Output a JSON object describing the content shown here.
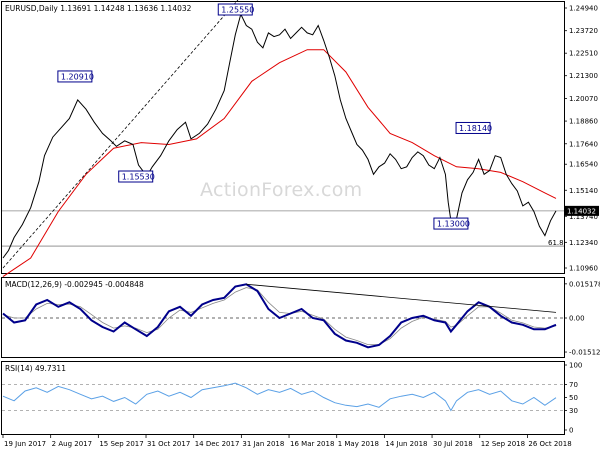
{
  "chart_data": {
    "type": "line",
    "watermark": "ActionForex.com",
    "x_labels": [
      "19 Jun 2017",
      "2 Aug 2017",
      "15 Sep 2017",
      "31 Oct 2017",
      "14 Dec 2017",
      "31 Jan 2018",
      "16 Mar 2018",
      "1 May 2018",
      "14 Jun 2018",
      "30 Jul 2018",
      "12 Sep 2018",
      "26 Oct 2018"
    ],
    "price": {
      "title": "EURUSD,Daily  1.13691 1.14248 1.13636 1.14032",
      "y_ticks": [
        "1.24940",
        "1.23720",
        "1.22510",
        "1.21300",
        "1.20070",
        "1.18860",
        "1.17640",
        "1.16540",
        "1.15140",
        "1.13740",
        "1.12340",
        "1.10960"
      ],
      "y_min": 1.1096,
      "y_max": 1.2494,
      "last_value_label": "1.14032",
      "current": 1.14032,
      "fib_label": "61.8",
      "fib_level": 1.1214,
      "annotations": [
        {
          "label": "1.25550",
          "value": 1.2555,
          "x_frac": 0.42
        },
        {
          "label": "1.20910",
          "value": 1.2091,
          "x_frac": 0.13
        },
        {
          "label": "1.15530",
          "value": 1.1553,
          "x_frac": 0.24
        },
        {
          "label": "1.18140",
          "value": 1.1814,
          "x_frac": 0.85
        },
        {
          "label": "1.13000",
          "value": 1.13,
          "x_frac": 0.81
        }
      ],
      "close_points": [
        [
          0.0,
          1.115
        ],
        [
          0.01,
          1.119
        ],
        [
          0.02,
          1.126
        ],
        [
          0.035,
          1.133
        ],
        [
          0.05,
          1.142
        ],
        [
          0.065,
          1.156
        ],
        [
          0.075,
          1.17
        ],
        [
          0.09,
          1.18
        ],
        [
          0.105,
          1.185
        ],
        [
          0.12,
          1.19
        ],
        [
          0.135,
          1.2
        ],
        [
          0.15,
          1.195
        ],
        [
          0.165,
          1.188
        ],
        [
          0.18,
          1.182
        ],
        [
          0.195,
          1.178
        ],
        [
          0.205,
          1.175
        ],
        [
          0.22,
          1.178
        ],
        [
          0.235,
          1.176
        ],
        [
          0.245,
          1.165
        ],
        [
          0.26,
          1.159
        ],
        [
          0.27,
          1.164
        ],
        [
          0.285,
          1.17
        ],
        [
          0.3,
          1.178
        ],
        [
          0.315,
          1.184
        ],
        [
          0.33,
          1.188
        ],
        [
          0.34,
          1.179
        ],
        [
          0.355,
          1.182
        ],
        [
          0.37,
          1.187
        ],
        [
          0.385,
          1.195
        ],
        [
          0.4,
          1.205
        ],
        [
          0.41,
          1.22
        ],
        [
          0.42,
          1.235
        ],
        [
          0.43,
          1.246
        ],
        [
          0.44,
          1.24
        ],
        [
          0.45,
          1.238
        ],
        [
          0.46,
          1.231
        ],
        [
          0.47,
          1.228
        ],
        [
          0.48,
          1.236
        ],
        [
          0.49,
          1.234
        ],
        [
          0.5,
          1.235
        ],
        [
          0.51,
          1.238
        ],
        [
          0.52,
          1.233
        ],
        [
          0.53,
          1.236
        ],
        [
          0.54,
          1.239
        ],
        [
          0.55,
          1.236
        ],
        [
          0.56,
          1.235
        ],
        [
          0.57,
          1.24
        ],
        [
          0.58,
          1.232
        ],
        [
          0.59,
          1.223
        ],
        [
          0.6,
          1.213
        ],
        [
          0.61,
          1.2
        ],
        [
          0.62,
          1.19
        ],
        [
          0.63,
          1.183
        ],
        [
          0.64,
          1.176
        ],
        [
          0.65,
          1.173
        ],
        [
          0.66,
          1.168
        ],
        [
          0.67,
          1.16
        ],
        [
          0.68,
          1.164
        ],
        [
          0.69,
          1.166
        ],
        [
          0.7,
          1.171
        ],
        [
          0.71,
          1.168
        ],
        [
          0.72,
          1.163
        ],
        [
          0.73,
          1.164
        ],
        [
          0.74,
          1.169
        ],
        [
          0.75,
          1.172
        ],
        [
          0.76,
          1.17
        ],
        [
          0.77,
          1.165
        ],
        [
          0.78,
          1.163
        ],
        [
          0.79,
          1.169
        ],
        [
          0.8,
          1.16
        ],
        [
          0.805,
          1.145
        ],
        [
          0.812,
          1.131
        ],
        [
          0.82,
          1.136
        ],
        [
          0.83,
          1.15
        ],
        [
          0.84,
          1.157
        ],
        [
          0.85,
          1.161
        ],
        [
          0.86,
          1.168
        ],
        [
          0.87,
          1.16
        ],
        [
          0.88,
          1.162
        ],
        [
          0.89,
          1.17
        ],
        [
          0.9,
          1.169
        ],
        [
          0.91,
          1.16
        ],
        [
          0.92,
          1.155
        ],
        [
          0.93,
          1.151
        ],
        [
          0.94,
          1.143
        ],
        [
          0.95,
          1.145
        ],
        [
          0.96,
          1.14
        ],
        [
          0.97,
          1.132
        ],
        [
          0.98,
          1.127
        ],
        [
          0.99,
          1.135
        ],
        [
          1.0,
          1.1403
        ]
      ],
      "ma_points": [
        [
          0.0,
          1.105
        ],
        [
          0.05,
          1.115
        ],
        [
          0.1,
          1.14
        ],
        [
          0.15,
          1.16
        ],
        [
          0.2,
          1.174
        ],
        [
          0.25,
          1.177
        ],
        [
          0.3,
          1.176
        ],
        [
          0.35,
          1.179
        ],
        [
          0.4,
          1.19
        ],
        [
          0.45,
          1.21
        ],
        [
          0.5,
          1.22
        ],
        [
          0.55,
          1.227
        ],
        [
          0.58,
          1.227
        ],
        [
          0.62,
          1.215
        ],
        [
          0.66,
          1.196
        ],
        [
          0.7,
          1.182
        ],
        [
          0.74,
          1.177
        ],
        [
          0.78,
          1.17
        ],
        [
          0.82,
          1.164
        ],
        [
          0.86,
          1.163
        ],
        [
          0.9,
          1.161
        ],
        [
          0.94,
          1.156
        ],
        [
          0.98,
          1.15
        ],
        [
          1.0,
          1.147
        ]
      ],
      "trendline": {
        "start": [
          0.0,
          1.1096
        ],
        "end": [
          0.43,
          1.2555
        ]
      }
    },
    "macd": {
      "title": "MACD(12,26,9) -0.002945 -0.004848",
      "y_ticks": [
        "0.015178",
        "0.00",
        "-0.015126"
      ],
      "y_min": -0.016,
      "y_max": 0.016,
      "macd_points": [
        [
          0.0,
          0.002
        ],
        [
          0.02,
          -0.002
        ],
        [
          0.04,
          -0.001
        ],
        [
          0.06,
          0.006
        ],
        [
          0.08,
          0.008
        ],
        [
          0.1,
          0.005
        ],
        [
          0.12,
          0.007
        ],
        [
          0.14,
          0.004
        ],
        [
          0.16,
          -0.001
        ],
        [
          0.18,
          -0.004
        ],
        [
          0.2,
          -0.006
        ],
        [
          0.22,
          -0.002
        ],
        [
          0.24,
          -0.005
        ],
        [
          0.26,
          -0.008
        ],
        [
          0.28,
          -0.004
        ],
        [
          0.3,
          0.003
        ],
        [
          0.32,
          0.005
        ],
        [
          0.34,
          0.001
        ],
        [
          0.36,
          0.006
        ],
        [
          0.38,
          0.008
        ],
        [
          0.4,
          0.009
        ],
        [
          0.42,
          0.014
        ],
        [
          0.44,
          0.015
        ],
        [
          0.46,
          0.012
        ],
        [
          0.48,
          0.004
        ],
        [
          0.5,
          0.0
        ],
        [
          0.52,
          0.002
        ],
        [
          0.54,
          0.004
        ],
        [
          0.56,
          0.0
        ],
        [
          0.58,
          -0.001
        ],
        [
          0.6,
          -0.007
        ],
        [
          0.62,
          -0.01
        ],
        [
          0.64,
          -0.011
        ],
        [
          0.66,
          -0.013
        ],
        [
          0.68,
          -0.012
        ],
        [
          0.7,
          -0.008
        ],
        [
          0.72,
          -0.002
        ],
        [
          0.74,
          0.0
        ],
        [
          0.76,
          0.001
        ],
        [
          0.78,
          -0.001
        ],
        [
          0.8,
          -0.002
        ],
        [
          0.81,
          -0.006
        ],
        [
          0.82,
          -0.003
        ],
        [
          0.84,
          0.003
        ],
        [
          0.86,
          0.007
        ],
        [
          0.88,
          0.005
        ],
        [
          0.9,
          0.001
        ],
        [
          0.92,
          -0.002
        ],
        [
          0.94,
          -0.003
        ],
        [
          0.96,
          -0.005
        ],
        [
          0.98,
          -0.005
        ],
        [
          1.0,
          -0.003
        ]
      ],
      "signal_points": [
        [
          0.0,
          0.0015
        ],
        [
          0.02,
          0.0
        ],
        [
          0.04,
          0.0
        ],
        [
          0.06,
          0.004
        ],
        [
          0.08,
          0.0065
        ],
        [
          0.1,
          0.006
        ],
        [
          0.12,
          0.0062
        ],
        [
          0.14,
          0.005
        ],
        [
          0.16,
          0.0015
        ],
        [
          0.18,
          -0.002
        ],
        [
          0.2,
          -0.0045
        ],
        [
          0.22,
          -0.0035
        ],
        [
          0.24,
          -0.0045
        ],
        [
          0.26,
          -0.0065
        ],
        [
          0.28,
          -0.005
        ],
        [
          0.3,
          0.0
        ],
        [
          0.32,
          0.0035
        ],
        [
          0.34,
          0.0025
        ],
        [
          0.36,
          0.0045
        ],
        [
          0.38,
          0.0065
        ],
        [
          0.4,
          0.008
        ],
        [
          0.42,
          0.0115
        ],
        [
          0.44,
          0.0135
        ],
        [
          0.46,
          0.0125
        ],
        [
          0.48,
          0.007
        ],
        [
          0.5,
          0.0025
        ],
        [
          0.52,
          0.002
        ],
        [
          0.54,
          0.003
        ],
        [
          0.56,
          0.0012
        ],
        [
          0.58,
          -0.0005
        ],
        [
          0.6,
          -0.005
        ],
        [
          0.62,
          -0.0085
        ],
        [
          0.64,
          -0.01
        ],
        [
          0.66,
          -0.0118
        ],
        [
          0.68,
          -0.0118
        ],
        [
          0.7,
          -0.0092
        ],
        [
          0.72,
          -0.0045
        ],
        [
          0.74,
          -0.0015
        ],
        [
          0.76,
          0.0003
        ],
        [
          0.78,
          -0.0005
        ],
        [
          0.8,
          -0.0015
        ],
        [
          0.81,
          -0.004
        ],
        [
          0.82,
          -0.0033
        ],
        [
          0.84,
          0.001
        ],
        [
          0.86,
          0.005
        ],
        [
          0.88,
          0.005
        ],
        [
          0.9,
          0.0022
        ],
        [
          0.92,
          -0.001
        ],
        [
          0.94,
          -0.0022
        ],
        [
          0.96,
          -0.004
        ],
        [
          0.98,
          -0.0045
        ],
        [
          1.0,
          -0.0035
        ]
      ],
      "trendline": {
        "start": [
          0.44,
          0.015
        ],
        "end": [
          1.0,
          0.0025
        ]
      }
    },
    "rsi": {
      "title": "RSI(14) 49.7311",
      "y_ticks": [
        "100",
        "70",
        "50",
        "30",
        "0"
      ],
      "y_min": 0,
      "y_max": 100,
      "level_lines": [
        70,
        30
      ],
      "points": [
        [
          0.0,
          52
        ],
        [
          0.02,
          45
        ],
        [
          0.04,
          60
        ],
        [
          0.06,
          65
        ],
        [
          0.08,
          58
        ],
        [
          0.1,
          67
        ],
        [
          0.12,
          62
        ],
        [
          0.14,
          55
        ],
        [
          0.16,
          48
        ],
        [
          0.18,
          52
        ],
        [
          0.2,
          44
        ],
        [
          0.22,
          50
        ],
        [
          0.24,
          40
        ],
        [
          0.26,
          55
        ],
        [
          0.28,
          60
        ],
        [
          0.3,
          52
        ],
        [
          0.32,
          58
        ],
        [
          0.34,
          50
        ],
        [
          0.36,
          62
        ],
        [
          0.38,
          65
        ],
        [
          0.4,
          68
        ],
        [
          0.42,
          72
        ],
        [
          0.44,
          65
        ],
        [
          0.46,
          55
        ],
        [
          0.48,
          62
        ],
        [
          0.5,
          58
        ],
        [
          0.52,
          64
        ],
        [
          0.54,
          55
        ],
        [
          0.56,
          60
        ],
        [
          0.58,
          50
        ],
        [
          0.6,
          42
        ],
        [
          0.62,
          38
        ],
        [
          0.64,
          36
        ],
        [
          0.66,
          40
        ],
        [
          0.68,
          35
        ],
        [
          0.7,
          48
        ],
        [
          0.72,
          52
        ],
        [
          0.74,
          55
        ],
        [
          0.76,
          50
        ],
        [
          0.78,
          58
        ],
        [
          0.8,
          45
        ],
        [
          0.81,
          30
        ],
        [
          0.82,
          45
        ],
        [
          0.84,
          58
        ],
        [
          0.86,
          62
        ],
        [
          0.88,
          55
        ],
        [
          0.9,
          60
        ],
        [
          0.92,
          45
        ],
        [
          0.94,
          40
        ],
        [
          0.96,
          50
        ],
        [
          0.98,
          38
        ],
        [
          1.0,
          49.7
        ]
      ]
    }
  }
}
